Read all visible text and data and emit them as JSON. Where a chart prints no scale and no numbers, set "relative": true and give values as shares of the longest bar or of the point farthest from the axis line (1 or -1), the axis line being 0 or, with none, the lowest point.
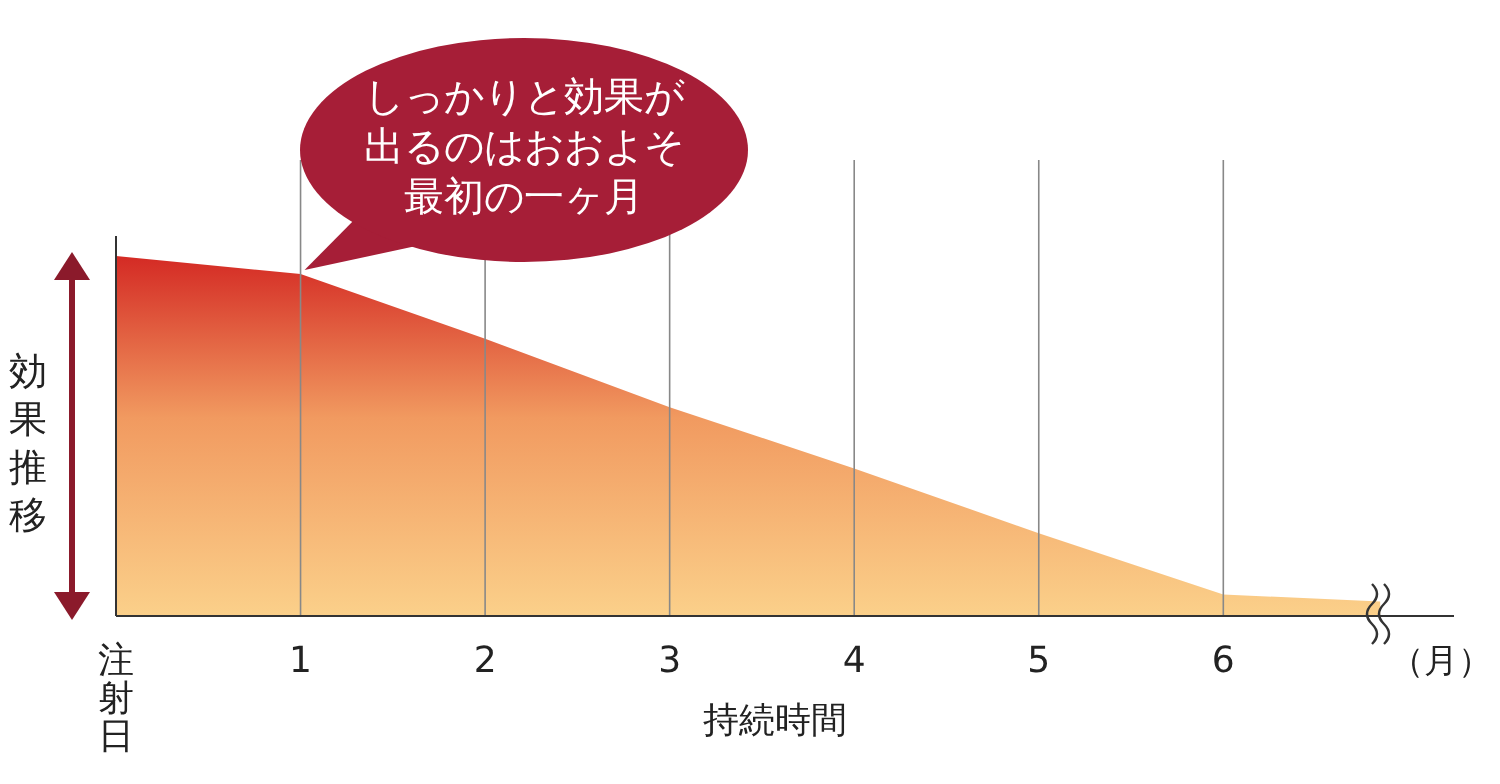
{
  "chart_data": {
    "type": "area",
    "relative": true,
    "xlabel": "持続時間",
    "ylabel": "効果推移",
    "x": [
      0,
      1,
      2,
      3,
      4,
      5,
      6,
      6.85
    ],
    "series": [
      {
        "color": "#fbd08a",
        "values": [
          1,
          0.95,
          0.77,
          0.58,
          0.41,
          0.23,
          0.06,
          0.04
        ]
      }
    ],
    "xlim": [
      0,
      7.25
    ],
    "xticks": [
      {
        "value": 0,
        "label": "注射日"
      },
      1,
      2,
      3,
      4,
      5,
      6
    ],
    "grid": "x",
    "annotations": [
      {
        "text": "しっかりと効果が出るのはおおよそ最初の一ヶ月",
        "x": 1,
        "y": 0.95
      },
      "（月）"
    ]
  }
}
